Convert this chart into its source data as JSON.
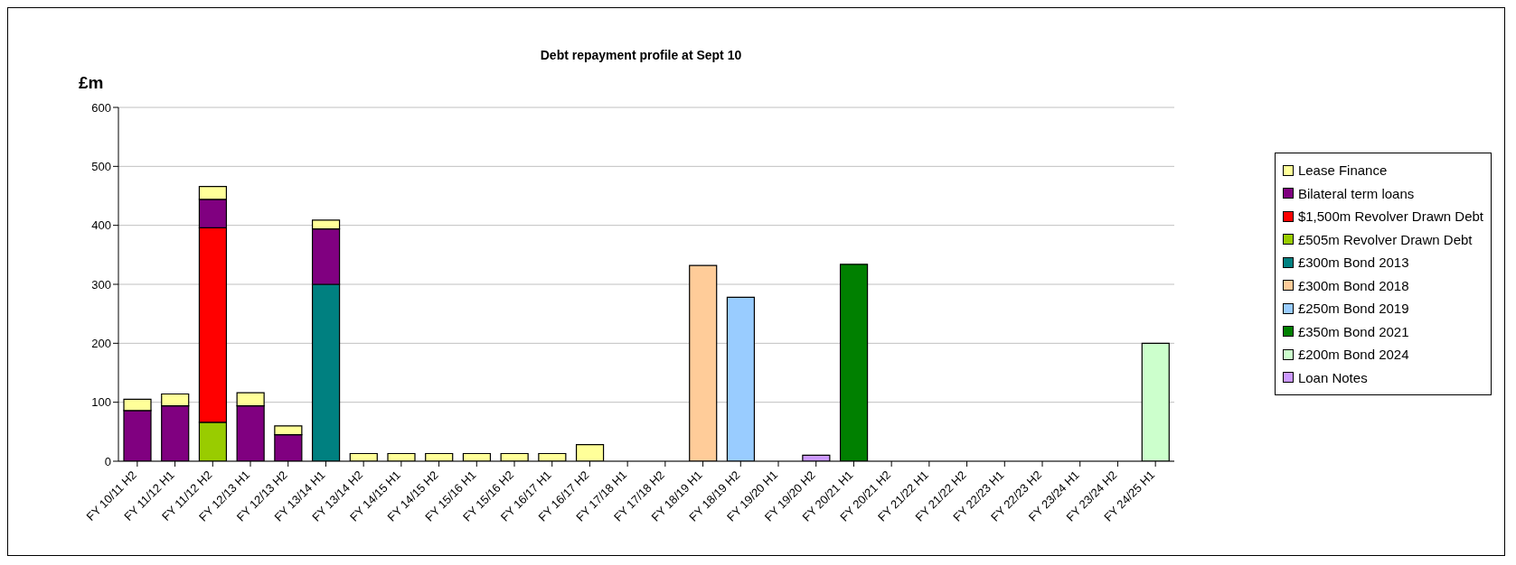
{
  "chart_data": {
    "type": "bar",
    "title": "Debt repayment profile at Sept 10",
    "ylabel": "£m",
    "stacked": true,
    "legend": "right",
    "grid": "y",
    "ylim": [
      0,
      600
    ],
    "yticks": [
      0,
      100,
      200,
      300,
      400,
      500,
      600
    ],
    "categories": [
      "FY 10/11 H2",
      "FY 11/12 H1",
      "FY 11/12 H2",
      "FY 12/13 H1",
      "FY 12/13 H2",
      "FY 13/14 H1",
      "FY 13/14 H2",
      "FY 14/15 H1",
      "FY 14/15 H2",
      "FY 15/16 H1",
      "FY 15/16 H2",
      "FY 16/17 H1",
      "FY 16/17 H2",
      "FY 17/18 H1",
      "FY 17/18 H2",
      "FY 18/19 H1",
      "FY 18/19 H2",
      "FY 19/20 H1",
      "FY 19/20 H2",
      "FY 20/21 H1",
      "FY 20/21 H2",
      "FY 21/22 H1",
      "FY 21/22 H2",
      "FY 22/23 H1",
      "FY 22/23 H2",
      "FY 23/24 H1",
      "FY 23/24 H2",
      "FY 24/25 H1"
    ],
    "series": [
      {
        "name": "Loan Notes",
        "color": "#cc99ff",
        "values": [
          null,
          null,
          null,
          null,
          null,
          null,
          null,
          null,
          null,
          null,
          null,
          null,
          null,
          null,
          null,
          null,
          null,
          null,
          10,
          null,
          null,
          null,
          null,
          null,
          null,
          null,
          null,
          null
        ]
      },
      {
        "name": "£200m Bond 2024",
        "color": "#ccffcc",
        "values": [
          null,
          null,
          null,
          null,
          null,
          null,
          null,
          null,
          null,
          null,
          null,
          null,
          null,
          null,
          null,
          null,
          null,
          null,
          null,
          null,
          null,
          null,
          null,
          null,
          null,
          null,
          null,
          200
        ]
      },
      {
        "name": "£350m Bond 2021",
        "color": "#008000",
        "values": [
          null,
          null,
          null,
          null,
          null,
          null,
          null,
          null,
          null,
          null,
          null,
          null,
          null,
          null,
          null,
          null,
          null,
          null,
          null,
          334,
          null,
          null,
          null,
          null,
          null,
          null,
          null,
          null
        ]
      },
      {
        "name": "£250m Bond 2019",
        "color": "#99ccff",
        "values": [
          null,
          null,
          null,
          null,
          null,
          null,
          null,
          null,
          null,
          null,
          null,
          null,
          null,
          null,
          null,
          null,
          278,
          null,
          null,
          null,
          null,
          null,
          null,
          null,
          null,
          null,
          null,
          null
        ]
      },
      {
        "name": "£300m Bond 2018",
        "color": "#ffcc99",
        "values": [
          null,
          null,
          null,
          null,
          null,
          null,
          null,
          null,
          null,
          null,
          null,
          null,
          null,
          null,
          null,
          332,
          null,
          null,
          null,
          null,
          null,
          null,
          null,
          null,
          null,
          null,
          null,
          null
        ]
      },
      {
        "name": "£300m Bond 2013",
        "color": "#008080",
        "values": [
          null,
          null,
          null,
          null,
          null,
          300,
          null,
          null,
          null,
          null,
          null,
          null,
          null,
          null,
          null,
          null,
          null,
          null,
          null,
          null,
          null,
          null,
          null,
          null,
          null,
          null,
          null,
          null
        ]
      },
      {
        "name": "£505m Revolver Drawn Debt",
        "color": "#99cc00",
        "values": [
          null,
          null,
          66,
          null,
          null,
          null,
          null,
          null,
          null,
          null,
          null,
          null,
          null,
          null,
          null,
          null,
          null,
          null,
          null,
          null,
          null,
          null,
          null,
          null,
          null,
          null,
          null,
          null
        ]
      },
      {
        "name": "$1,500m Revolver Drawn Debt",
        "color": "#ff0000",
        "values": [
          null,
          null,
          330,
          null,
          null,
          null,
          null,
          null,
          null,
          null,
          null,
          null,
          null,
          null,
          null,
          null,
          null,
          null,
          null,
          null,
          null,
          null,
          null,
          null,
          null,
          null,
          null,
          null
        ]
      },
      {
        "name": "Bilateral term loans",
        "color": "#800080",
        "values": [
          86,
          94,
          48,
          94,
          45,
          94,
          null,
          null,
          null,
          null,
          null,
          null,
          null,
          null,
          null,
          null,
          null,
          null,
          null,
          null,
          null,
          null,
          null,
          null,
          null,
          null,
          null,
          null
        ]
      },
      {
        "name": "Lease Finance",
        "color": "#ffff99",
        "values": [
          19,
          20,
          22,
          22,
          15,
          15,
          13,
          13,
          13,
          13,
          13,
          13,
          28,
          null,
          null,
          null,
          null,
          null,
          null,
          null,
          null,
          null,
          null,
          null,
          null,
          null,
          null,
          null
        ]
      }
    ]
  }
}
